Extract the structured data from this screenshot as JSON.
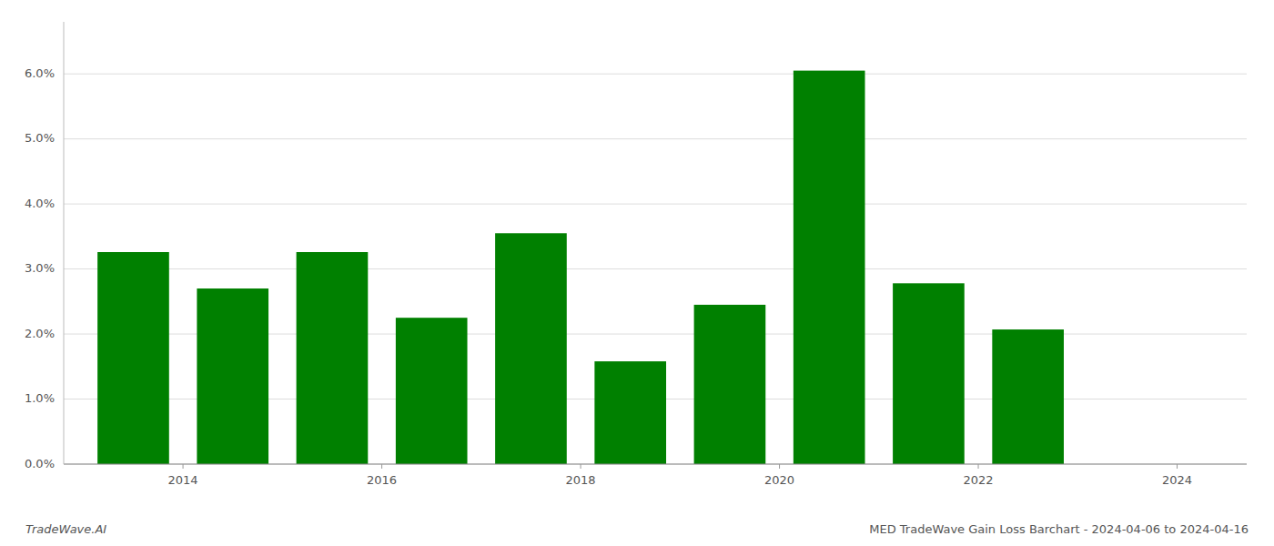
{
  "chart_data": {
    "type": "bar",
    "title": "MED TradeWave Gain Loss Barchart - 2024-04-06 to 2024-04-16",
    "annotations": [
      "TradeWave.AI"
    ],
    "x": [
      2013.5,
      2014.5,
      2015.5,
      2016.5,
      2017.5,
      2018.5,
      2019.5,
      2020.5,
      2021.5,
      2022.5,
      2023.5
    ],
    "values": [
      0.0326,
      0.027,
      0.0326,
      0.0225,
      0.0355,
      0.0158,
      0.0245,
      0.0605,
      0.0278,
      0.0207,
      0.0
    ],
    "color": "#008000",
    "xlim": [
      2012.8,
      2024.7
    ],
    "xticks": [
      2014,
      2016,
      2018,
      2020,
      2022,
      2024
    ],
    "ylim": [
      0,
      0.068
    ],
    "yticks": [
      {
        "value": 0.0,
        "label": "0.0%"
      },
      {
        "value": 0.01,
        "label": "1.0%"
      },
      {
        "value": 0.02,
        "label": "2.0%"
      },
      {
        "value": 0.03,
        "label": "3.0%"
      },
      {
        "value": 0.04,
        "label": "4.0%"
      },
      {
        "value": 0.05,
        "label": "5.0%"
      },
      {
        "value": 0.06,
        "label": "6.0%"
      }
    ],
    "grid": true
  }
}
